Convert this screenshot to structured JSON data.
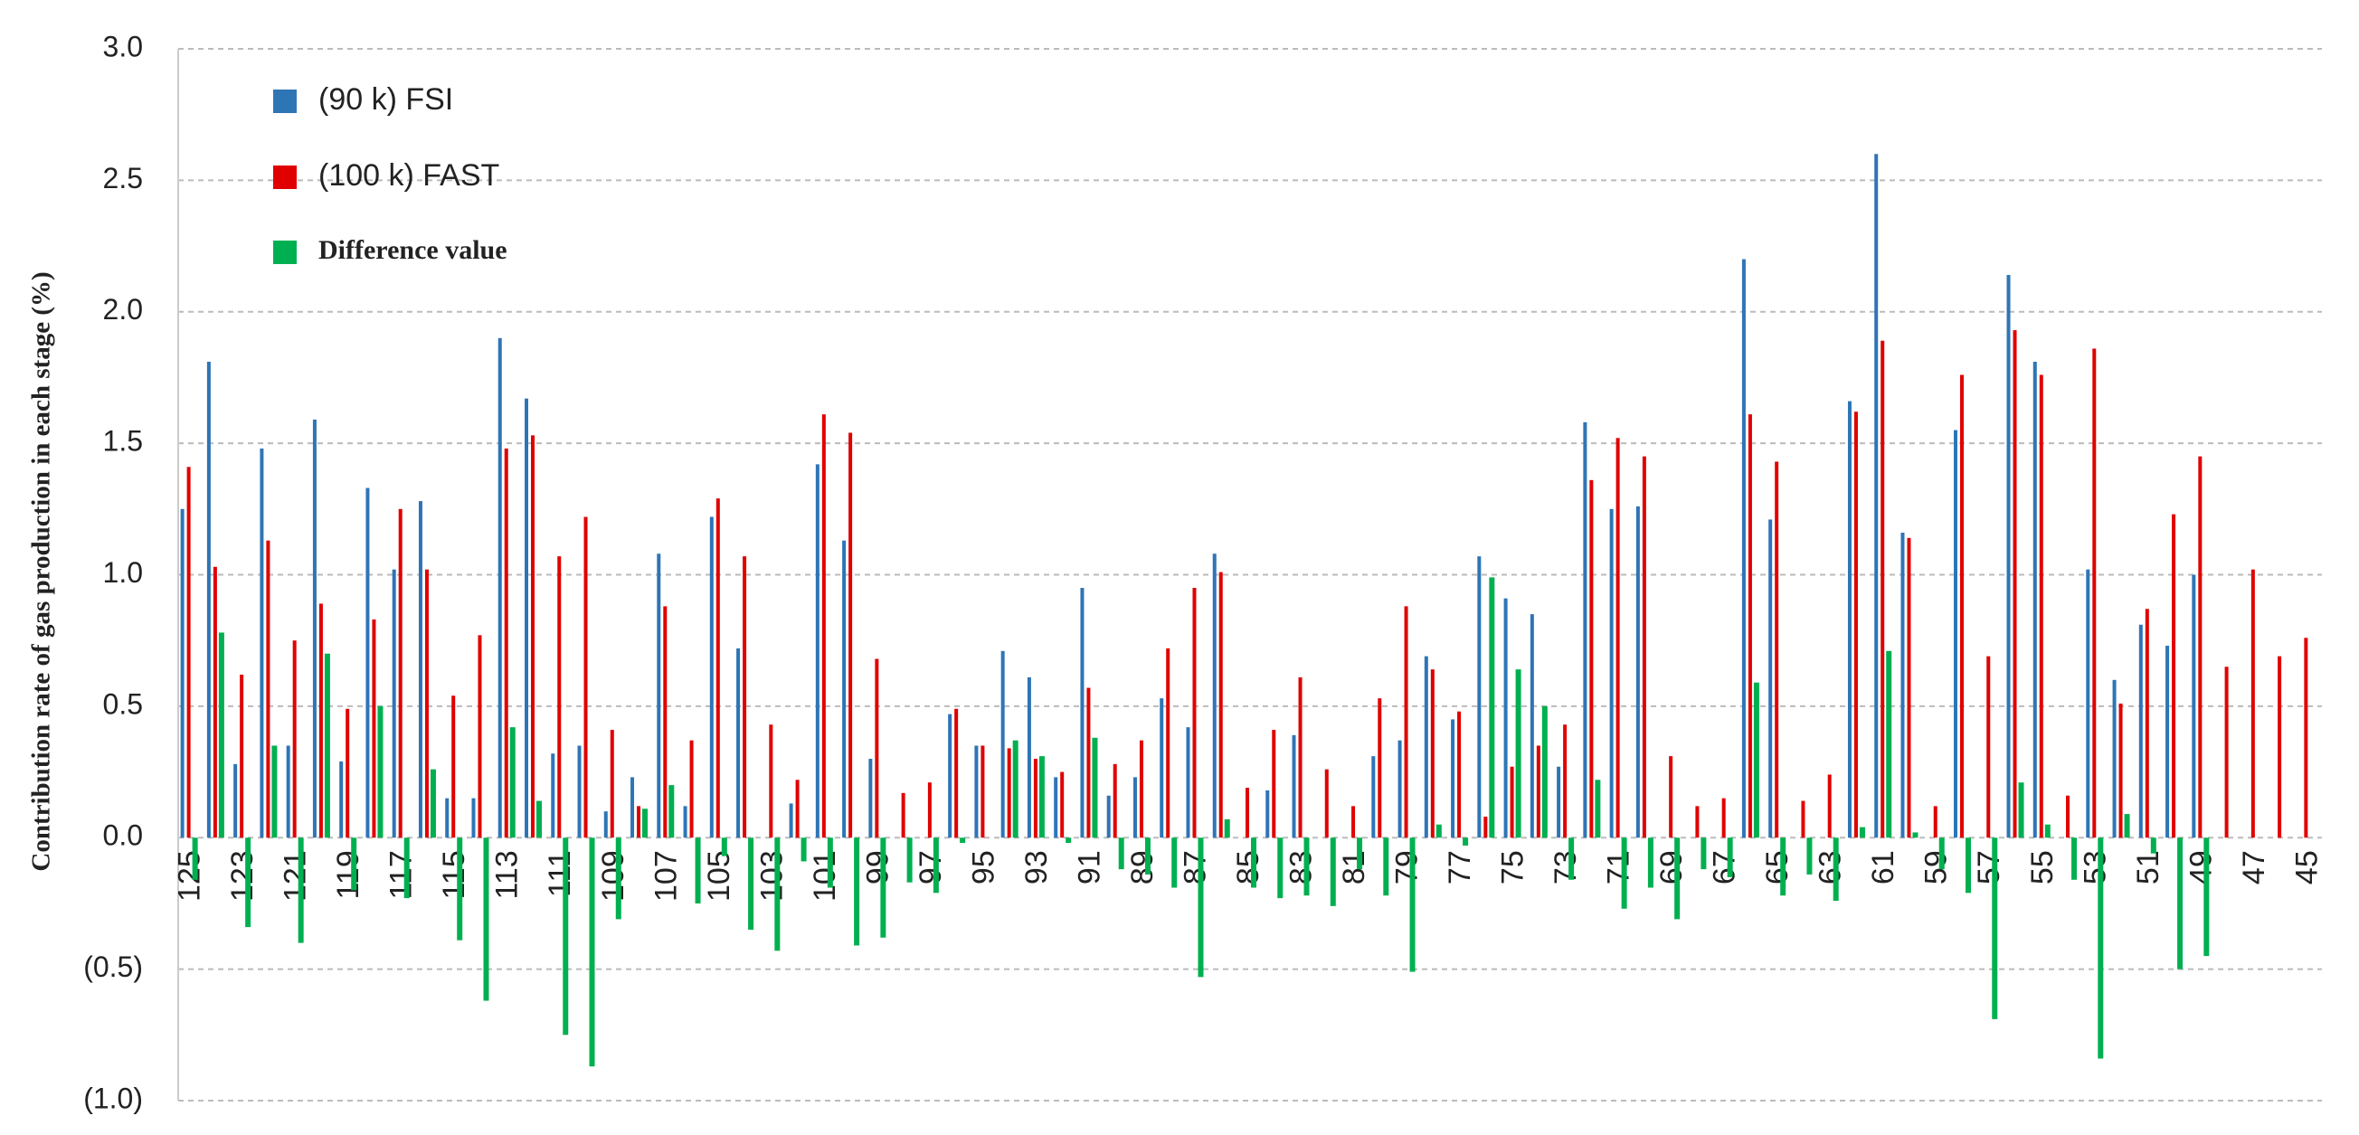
{
  "chart_data": {
    "type": "bar",
    "y_label": "Contribution rate of gas production in each stage (%)",
    "categories": [
      125,
      null,
      123,
      null,
      121,
      null,
      119,
      null,
      117,
      null,
      115,
      null,
      113,
      null,
      111,
      null,
      109,
      null,
      107,
      null,
      105,
      null,
      103,
      null,
      101,
      null,
      99,
      null,
      97,
      null,
      95,
      null,
      93,
      null,
      91,
      null,
      89,
      null,
      87,
      null,
      85,
      null,
      83,
      null,
      81,
      null,
      79,
      null,
      77,
      null,
      75,
      null,
      73,
      null,
      71,
      null,
      69,
      null,
      67,
      null,
      65,
      null,
      63,
      null,
      61,
      null,
      59,
      null,
      57,
      null,
      55,
      null,
      53,
      null,
      51,
      null,
      49,
      null,
      47,
      null,
      45
    ],
    "series": [
      {
        "name": "(90 k) FSI",
        "color": "#2e75b6",
        "values": [
          1.25,
          1.81,
          0.28,
          1.48,
          0.35,
          1.59,
          0.29,
          1.33,
          1.02,
          1.28,
          0.15,
          0.15,
          1.9,
          1.67,
          0.32,
          0.35,
          0.1,
          0.23,
          1.08,
          0.12,
          1.22,
          0.72,
          0,
          0.13,
          1.42,
          1.13,
          0.3,
          0,
          0,
          0.47,
          0.35,
          0.71,
          0.61,
          0.23,
          0.95,
          0.16,
          0.23,
          0.53,
          0.42,
          1.08,
          0,
          0.18,
          0.39,
          0,
          0,
          0.31,
          0.37,
          0.69,
          0.45,
          1.07,
          0.91,
          0.85,
          0.27,
          1.58,
          1.25,
          1.26,
          0,
          0,
          0,
          2.2,
          1.21,
          0,
          0,
          1.66,
          2.6,
          1.16,
          0,
          1.55,
          0,
          2.14,
          1.81,
          0,
          1.02,
          0.6,
          0.81,
          0.73,
          1.0,
          null,
          null,
          null,
          null
        ]
      },
      {
        "name": "(100 k) FAST",
        "color": "#e00000",
        "values": [
          1.41,
          1.03,
          0.62,
          1.13,
          0.75,
          0.89,
          0.49,
          0.83,
          1.25,
          1.02,
          0.54,
          0.77,
          1.48,
          1.53,
          1.07,
          1.22,
          0.41,
          0.12,
          0.88,
          0.37,
          1.29,
          1.07,
          0.43,
          0.22,
          1.61,
          1.54,
          0.68,
          0.17,
          0.21,
          0.49,
          0.35,
          0.34,
          0.3,
          0.25,
          0.57,
          0.28,
          0.37,
          0.72,
          0.95,
          1.01,
          0.19,
          0.41,
          0.61,
          0.26,
          0.12,
          0.53,
          0.88,
          0.64,
          0.48,
          0.08,
          0.27,
          0.35,
          0.43,
          1.36,
          1.52,
          1.45,
          0.31,
          0.12,
          0.15,
          1.61,
          1.43,
          0.14,
          0.24,
          1.62,
          1.89,
          1.14,
          0.12,
          1.76,
          0.69,
          1.93,
          1.76,
          0.16,
          1.86,
          0.51,
          0.87,
          1.23,
          1.45,
          0.65,
          1.02,
          0.69,
          0.76
        ]
      },
      {
        "name": "Difference value",
        "color": "#00b050",
        "values": [
          -0.16,
          0.78,
          -0.34,
          0.35,
          -0.4,
          0.7,
          -0.2,
          0.5,
          -0.23,
          0.26,
          -0.39,
          -0.62,
          0.42,
          0.14,
          -0.75,
          -0.87,
          -0.31,
          0.11,
          0.2,
          -0.25,
          -0.07,
          -0.35,
          -0.43,
          -0.09,
          -0.19,
          -0.41,
          -0.38,
          -0.17,
          -0.21,
          -0.02,
          0,
          0.37,
          0.31,
          -0.02,
          0.38,
          -0.12,
          -0.14,
          -0.19,
          -0.53,
          0.07,
          -0.19,
          -0.23,
          -0.22,
          -0.26,
          -0.12,
          -0.22,
          -0.51,
          0.05,
          -0.03,
          0.99,
          0.64,
          0.5,
          -0.16,
          0.22,
          -0.27,
          -0.19,
          -0.31,
          -0.12,
          -0.15,
          0.59,
          -0.22,
          -0.14,
          -0.24,
          0.04,
          0.71,
          0.02,
          -0.12,
          -0.21,
          -0.69,
          0.21,
          0.05,
          -0.16,
          -0.84,
          0.09,
          -0.06,
          -0.5,
          -0.45,
          null,
          null,
          null,
          null
        ]
      }
    ],
    "ylim": [
      -1,
      3
    ],
    "yticks": [
      {
        "value": 3,
        "label": "3.0"
      },
      {
        "value": 2.5,
        "label": "2.5"
      },
      {
        "value": 2,
        "label": "2.0"
      },
      {
        "value": 1.5,
        "label": "1.5"
      },
      {
        "value": 1,
        "label": "1.0"
      },
      {
        "value": 0.5,
        "label": "0.5"
      },
      {
        "value": 0,
        "label": "0.0"
      },
      {
        "value": -0.5,
        "label": "(0.5)"
      },
      {
        "value": -1,
        "label": "(1.0)"
      }
    ],
    "negative_tick_color": "#e00000",
    "grid": true,
    "legend": "top-left"
  }
}
